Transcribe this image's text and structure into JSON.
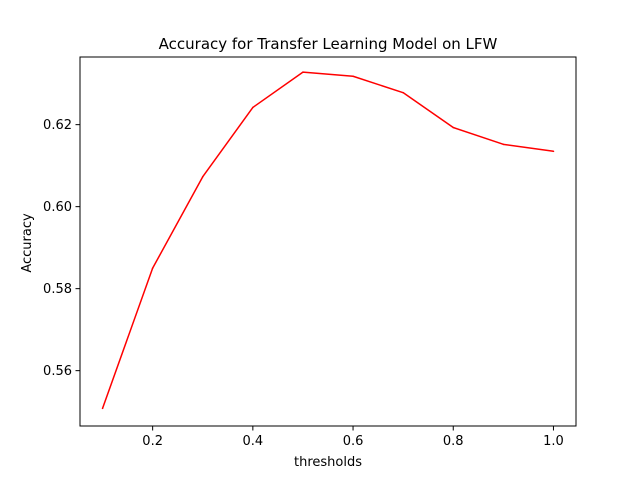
{
  "chart_data": {
    "type": "line",
    "title": "Accuracy for Transfer Learning Model on LFW",
    "xlabel": "thresholds",
    "ylabel": "Accuracy",
    "xlim": [
      0.055,
      1.045
    ],
    "ylim": [
      0.5465,
      0.6365
    ],
    "x_ticks": [
      0.2,
      0.4,
      0.6,
      0.8,
      1.0
    ],
    "x_tick_labels": [
      "0.2",
      "0.4",
      "0.6",
      "0.8",
      "1.0"
    ],
    "y_ticks": [
      0.56,
      0.58,
      0.6,
      0.62
    ],
    "y_tick_labels": [
      "0.56",
      "0.58",
      "0.60",
      "0.62"
    ],
    "grid": false,
    "series": [
      {
        "color": "#ff0000",
        "x": [
          0.1,
          0.2,
          0.3,
          0.4,
          0.5,
          0.6,
          0.7,
          0.8,
          0.9,
          1.0
        ],
        "y": [
          0.5508,
          0.585,
          0.6073,
          0.6242,
          0.6328,
          0.6318,
          0.6278,
          0.6193,
          0.6152,
          0.6135
        ]
      }
    ]
  }
}
